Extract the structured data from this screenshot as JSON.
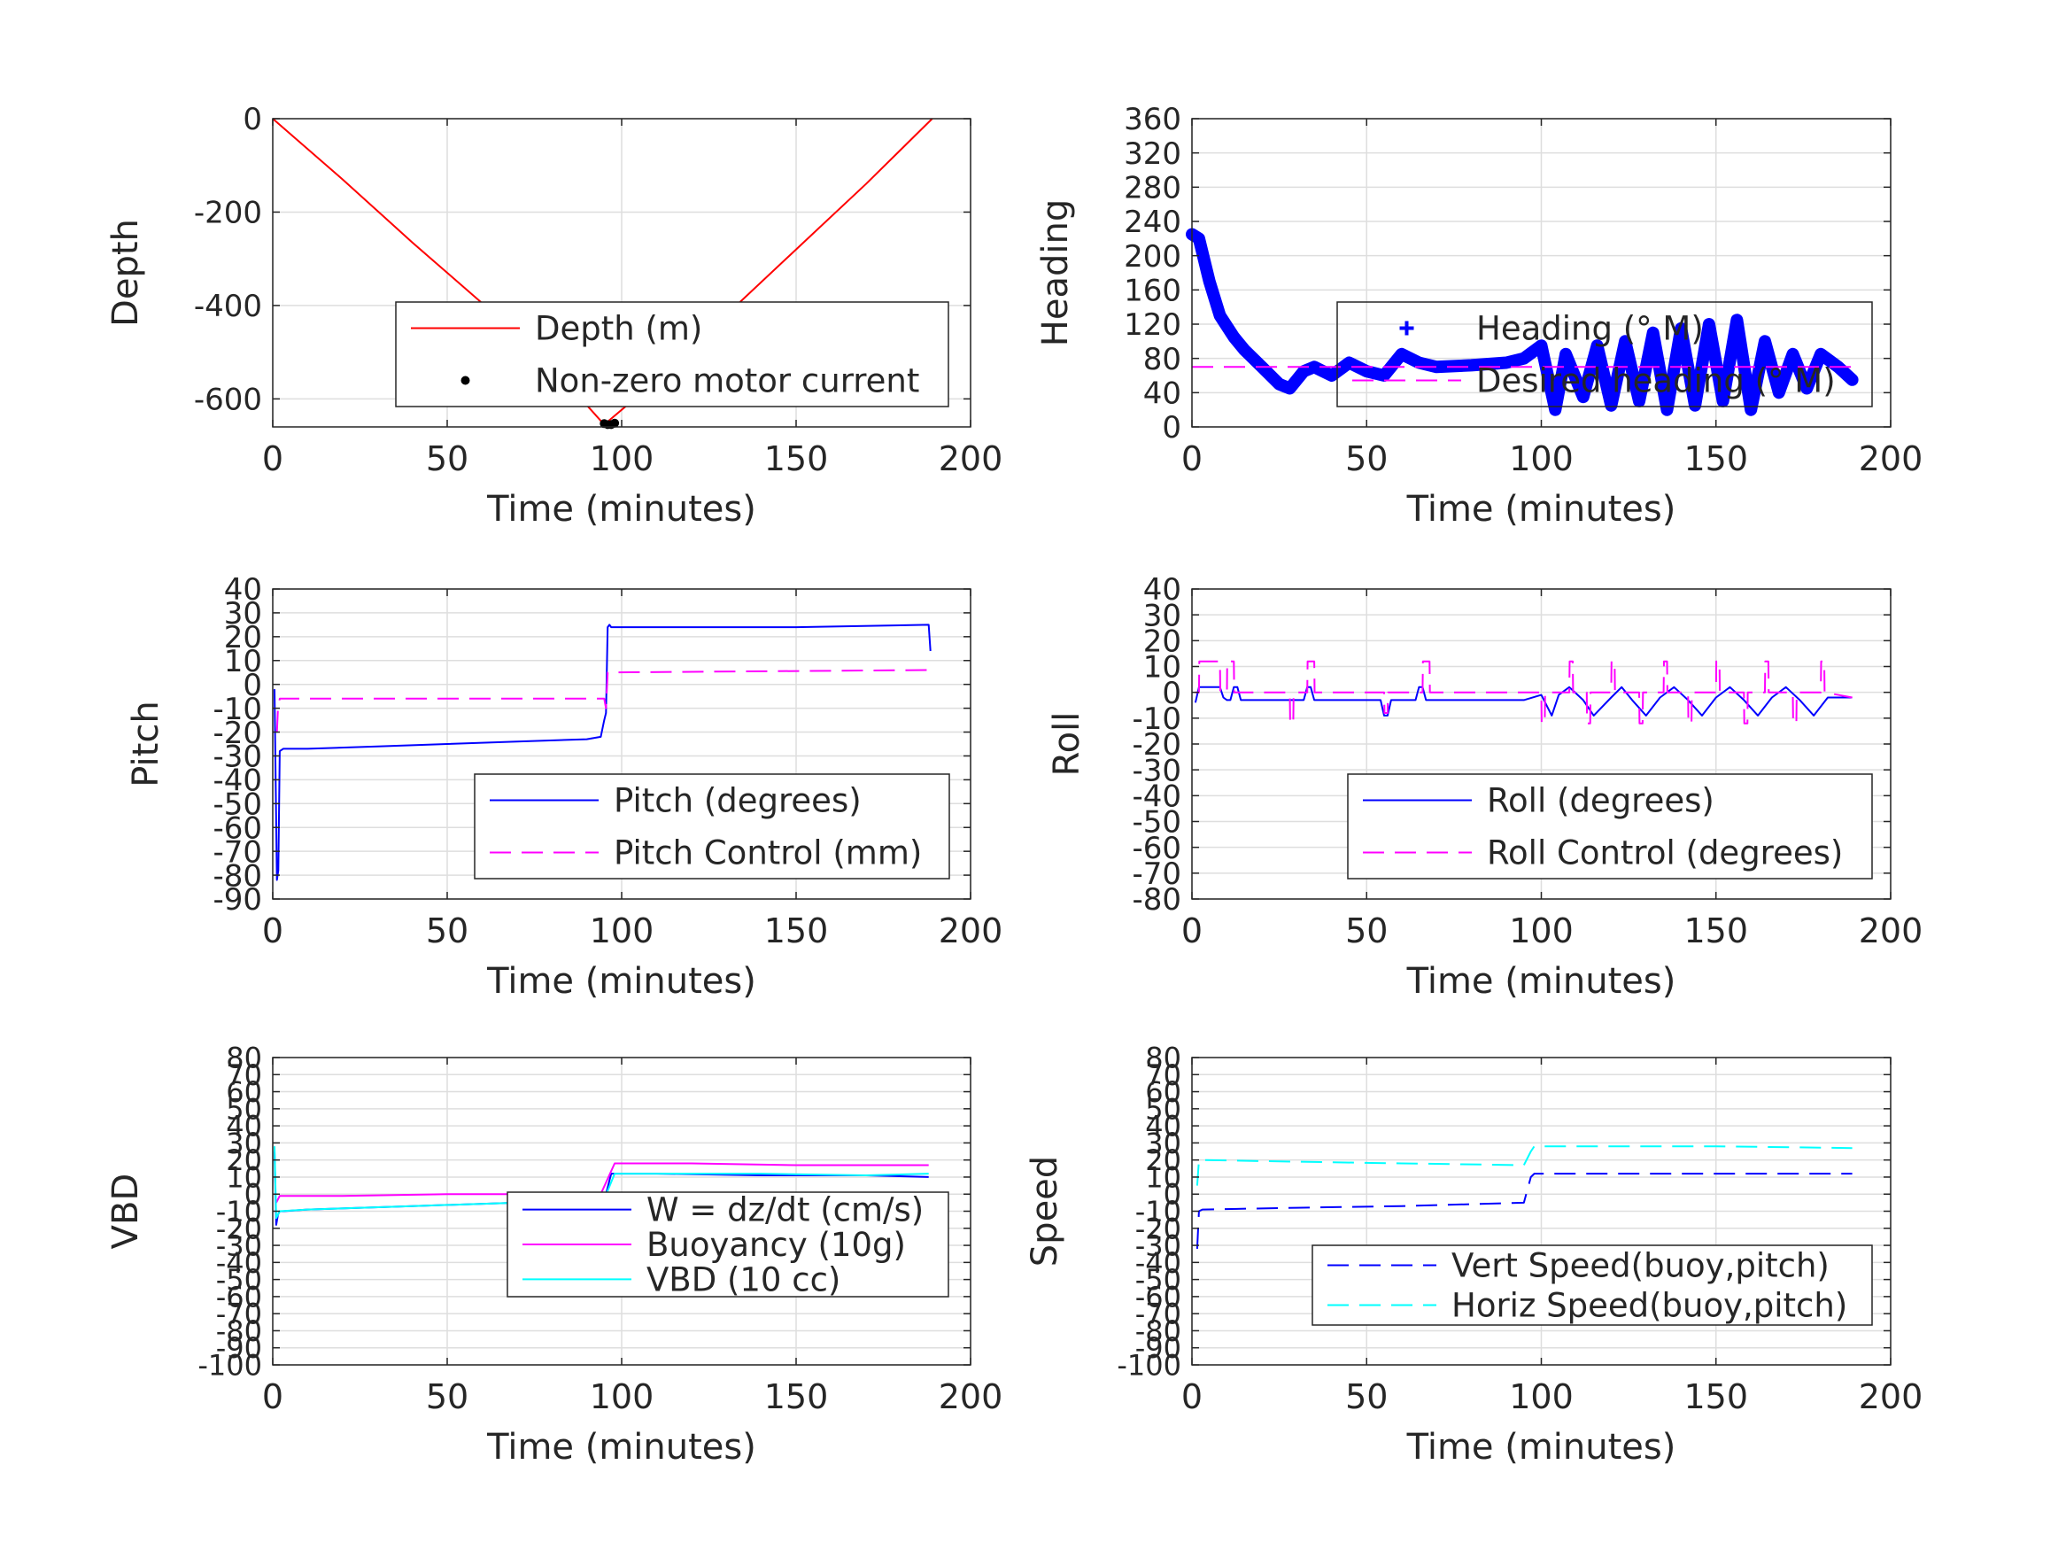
{
  "chart_data": [
    {
      "type": "line",
      "xlabel": "Time (minutes)",
      "ylabel": "Depth",
      "xlim": [
        0,
        200
      ],
      "ylim": [
        -660,
        0
      ],
      "xticks": [
        "0",
        "50",
        "100",
        "150",
        "200"
      ],
      "yticks": [
        0,
        -200,
        -400,
        -600
      ],
      "grid": true,
      "legend_position": "bottom-right",
      "series": [
        {
          "name": "Depth (m)",
          "style": "solid",
          "color": "#ff0000",
          "x": [
            0,
            20,
            40,
            60,
            80,
            95,
            110,
            130,
            150,
            170,
            189
          ],
          "y": [
            0,
            -130,
            -265,
            -395,
            -530,
            -655,
            -560,
            -420,
            -280,
            -140,
            0
          ]
        },
        {
          "name": "Non-zero motor current",
          "style": "dots",
          "color": "#000000",
          "x": [
            95,
            96,
            97,
            98
          ],
          "y": [
            -653,
            -655,
            -655,
            -652
          ]
        }
      ]
    },
    {
      "type": "line",
      "xlabel": "Time (minutes)",
      "ylabel": "Heading",
      "xlim": [
        0,
        200
      ],
      "ylim": [
        0,
        360
      ],
      "xticks": [
        "0",
        "50",
        "100",
        "150",
        "200"
      ],
      "yticks": [
        0,
        40,
        80,
        120,
        160,
        200,
        240,
        280,
        320,
        360
      ],
      "grid": true,
      "legend_position": "right",
      "series": [
        {
          "name": "Heading (° M)",
          "style": "plus-thick",
          "color": "#0000ff",
          "x": [
            0,
            2,
            5,
            8,
            12,
            15,
            20,
            25,
            28,
            32,
            35,
            40,
            45,
            50,
            55,
            60,
            65,
            70,
            80,
            90,
            95,
            100,
            104,
            107,
            112,
            116,
            120,
            124,
            128,
            132,
            136,
            140,
            144,
            148,
            152,
            156,
            160,
            164,
            168,
            172,
            176,
            180,
            185,
            189
          ],
          "y": [
            225,
            220,
            170,
            130,
            105,
            90,
            70,
            50,
            45,
            65,
            70,
            60,
            75,
            65,
            60,
            85,
            75,
            70,
            72,
            75,
            80,
            95,
            20,
            85,
            35,
            95,
            25,
            100,
            30,
            110,
            20,
            115,
            25,
            120,
            30,
            125,
            20,
            100,
            40,
            85,
            45,
            85,
            70,
            55
          ]
        },
        {
          "name": "Desired heading (° M)",
          "style": "dashed",
          "color": "#ff00ff",
          "x": [
            0,
            189
          ],
          "y": [
            70,
            70
          ]
        }
      ]
    },
    {
      "type": "line",
      "xlabel": "Time (minutes)",
      "ylabel": "Pitch",
      "xlim": [
        0,
        200
      ],
      "ylim": [
        -90,
        40
      ],
      "xticks": [
        "0",
        "50",
        "100",
        "150",
        "200"
      ],
      "yticks": [
        40,
        30,
        20,
        10,
        0,
        -10,
        -20,
        -30,
        -40,
        -50,
        -60,
        -70,
        -80,
        -90
      ],
      "grid": true,
      "legend_position": "bottom-right",
      "series": [
        {
          "name": "Pitch (degrees)",
          "style": "solid",
          "color": "#0000ff",
          "x": [
            0.5,
            1.2,
            1.6,
            2,
            3,
            10,
            30,
            50,
            70,
            90,
            94,
            95,
            95.5,
            96,
            96.5,
            97,
            120,
            150,
            188,
            188.5
          ],
          "y": [
            -2,
            -82,
            -78,
            -28,
            -27,
            -27,
            -26,
            -25,
            -24,
            -23,
            -22,
            -15,
            -12,
            24,
            25,
            24,
            24,
            24,
            25,
            14
          ]
        },
        {
          "name": "Pitch Control (mm)",
          "style": "dashed",
          "color": "#ff00ff",
          "x": [
            1.2,
            1.5,
            2,
            95,
            95.5,
            96,
            188
          ],
          "y": [
            -20,
            -10,
            -6,
            -6,
            -10,
            5,
            6
          ]
        }
      ]
    },
    {
      "type": "line",
      "xlabel": "Time (minutes)",
      "ylabel": "Roll",
      "xlim": [
        0,
        200
      ],
      "ylim": [
        -80,
        40
      ],
      "xticks": [
        "0",
        "50",
        "100",
        "150",
        "200"
      ],
      "yticks": [
        40,
        30,
        20,
        10,
        0,
        -10,
        -20,
        -30,
        -40,
        -50,
        -60,
        -70,
        -80
      ],
      "grid": true,
      "legend_position": "bottom-right",
      "series": [
        {
          "name": "Roll (degrees)",
          "style": "solid",
          "color": "#0000ff",
          "x": [
            1,
            2,
            8,
            9,
            10,
            11,
            12,
            13,
            14,
            15,
            30,
            32,
            33,
            34,
            35,
            54,
            55,
            56,
            57,
            64,
            65,
            66,
            67,
            92,
            95,
            100,
            103,
            105,
            108,
            112,
            115,
            120,
            123,
            126,
            130,
            134,
            138,
            142,
            146,
            150,
            154,
            158,
            162,
            166,
            170,
            174,
            178,
            182,
            189
          ],
          "y": [
            -4,
            2,
            2,
            -2,
            -3,
            -3,
            2,
            2,
            -3,
            -3,
            -3,
            -3,
            2,
            2,
            -3,
            -3,
            -9,
            -9,
            -3,
            -3,
            2,
            2,
            -3,
            -3,
            -3,
            -1,
            -9,
            -1,
            2,
            -3,
            -9,
            -2,
            2,
            -3,
            -9,
            -2,
            2,
            -3,
            -9,
            -2,
            2,
            -3,
            -9,
            -2,
            2,
            -3,
            -9,
            -2,
            -2
          ]
        },
        {
          "name": "Roll Control (degrees)",
          "style": "dashed",
          "color": "#ff00ff",
          "x": [
            1,
            2,
            2.1,
            8,
            8.1,
            10,
            10.1,
            12,
            12.1,
            14,
            14.1,
            28,
            28.1,
            29,
            29.1,
            33,
            33.1,
            35,
            35.1,
            55,
            55.1,
            56,
            56.1,
            66,
            66.1,
            68,
            68.1,
            100,
            100.1,
            101,
            101.1,
            108,
            108.1,
            109,
            109.1,
            113,
            113.1,
            114,
            114.1,
            120,
            120.1,
            121,
            121.1,
            128,
            128.1,
            129,
            129.1,
            135,
            135.1,
            136,
            136.1,
            142,
            142.1,
            143,
            143.1,
            150,
            150.1,
            151,
            151.1,
            158,
            158.1,
            159,
            159.1,
            164,
            164.1,
            165,
            165.1,
            172,
            172.1,
            173,
            173.1,
            180,
            180.1,
            181,
            181.1,
            189
          ],
          "y": [
            0,
            0,
            12,
            12,
            0,
            0,
            12,
            12,
            0,
            0,
            0,
            0,
            -12,
            -12,
            0,
            0,
            12,
            12,
            0,
            0,
            -8,
            -8,
            0,
            0,
            12,
            12,
            0,
            0,
            -12,
            -12,
            0,
            0,
            12,
            12,
            0,
            0,
            -12,
            -12,
            0,
            0,
            12,
            12,
            0,
            0,
            -12,
            -12,
            0,
            0,
            12,
            12,
            0,
            0,
            -12,
            -12,
            0,
            0,
            12,
            12,
            0,
            0,
            -12,
            -12,
            0,
            0,
            12,
            12,
            0,
            0,
            -12,
            -12,
            0,
            0,
            12,
            12,
            0,
            -2
          ]
        }
      ]
    },
    {
      "type": "line",
      "xlabel": "Time (minutes)",
      "ylabel": "VBD",
      "xlim": [
        0,
        200
      ],
      "ylim": [
        -100,
        80
      ],
      "xticks": [
        "0",
        "50",
        "100",
        "150",
        "200"
      ],
      "yticks": [
        80,
        70,
        60,
        50,
        40,
        30,
        20,
        10,
        0,
        -10,
        -20,
        -30,
        -40,
        -50,
        -60,
        -70,
        -80,
        -90,
        -100
      ],
      "grid": true,
      "legend_position": "bottom-right",
      "series": [
        {
          "name": "W = dz/dt (cm/s)",
          "style": "solid",
          "color": "#0000ff",
          "x": [
            0.5,
            1,
            1.5,
            2,
            3,
            10,
            40,
            70,
            92,
            95,
            97,
            98,
            110,
            140,
            170,
            188
          ],
          "y": [
            25,
            -18,
            -12,
            -10,
            -10,
            -9,
            -7,
            -5,
            -4,
            -4,
            12,
            12,
            12,
            11,
            11,
            10
          ]
        },
        {
          "name": "Buoyancy (10g)",
          "style": "solid",
          "color": "#ff00ff",
          "x": [
            1,
            2,
            20,
            50,
            80,
            94,
            98,
            120,
            150,
            188
          ],
          "y": [
            -5,
            -1,
            -1,
            0,
            0,
            0,
            18,
            18,
            17,
            17
          ]
        },
        {
          "name": "VBD (10 cc)",
          "style": "solid",
          "color": "#00ffff",
          "x": [
            0.5,
            1,
            2,
            10,
            40,
            70,
            92,
            95,
            98,
            110,
            140,
            170,
            188
          ],
          "y": [
            28,
            -14,
            -10,
            -9,
            -7,
            -5,
            -4,
            -3,
            12,
            12,
            12,
            11,
            12
          ]
        }
      ]
    },
    {
      "type": "line",
      "xlabel": "Time (minutes)",
      "ylabel": "Speed",
      "xlim": [
        0,
        200
      ],
      "ylim": [
        -100,
        80
      ],
      "xticks": [
        "0",
        "50",
        "100",
        "150",
        "200"
      ],
      "yticks": [
        80,
        70,
        60,
        50,
        40,
        30,
        20,
        10,
        0,
        -10,
        -20,
        -30,
        -40,
        -50,
        -60,
        -70,
        -80,
        -90,
        -100
      ],
      "grid": true,
      "legend_position": "bottom-right",
      "series": [
        {
          "name": "Vert Speed(buoy,pitch)",
          "style": "dashed",
          "color": "#0000ff",
          "x": [
            1.5,
            2,
            3,
            30,
            60,
            95,
            97,
            98,
            120,
            150,
            189
          ],
          "y": [
            -32,
            -10,
            -9,
            -8,
            -7,
            -5,
            10,
            12,
            12,
            12,
            12
          ]
        },
        {
          "name": "Horiz Speed(buoy,pitch)",
          "style": "dashed",
          "color": "#00ffff",
          "x": [
            1.5,
            2,
            3,
            30,
            60,
            95,
            97,
            98,
            120,
            150,
            189
          ],
          "y": [
            5,
            20,
            20,
            19,
            18,
            17,
            25,
            28,
            28,
            28,
            27
          ]
        }
      ]
    }
  ]
}
